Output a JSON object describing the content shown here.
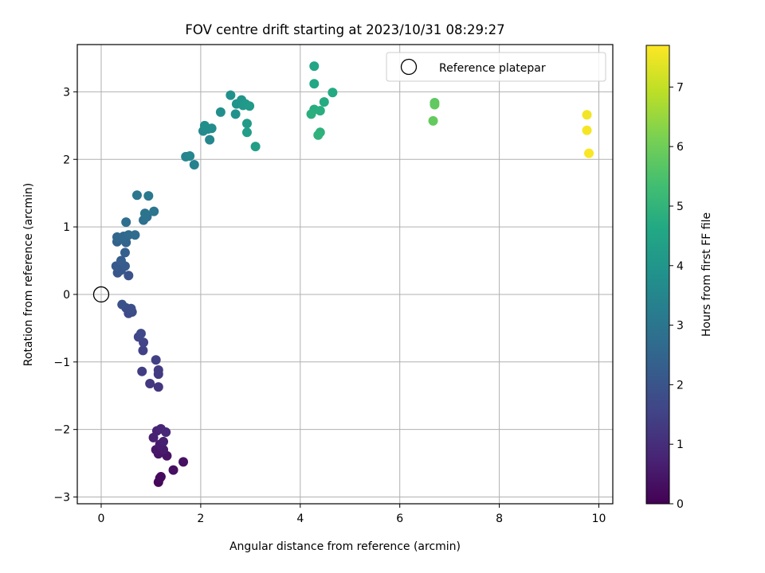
{
  "chart_data": {
    "type": "scatter",
    "title": "FOV centre drift starting at 2023/10/31 08:29:27",
    "xlabel": "Angular distance from reference (arcmin)",
    "ylabel": "Rotation from reference (arcmin)",
    "xlim": [
      -0.48,
      10.28
    ],
    "ylim": [
      -3.1,
      3.7
    ],
    "xticks": [
      0,
      2,
      4,
      6,
      8,
      10
    ],
    "yticks": [
      -3,
      -2,
      -1,
      0,
      1,
      2,
      3
    ],
    "grid": true,
    "legend": {
      "position": "top-right",
      "entries": [
        "Reference platepar"
      ]
    },
    "reference": {
      "x": 0,
      "y": 0,
      "label": "Reference platepar"
    },
    "colorbar": {
      "label": "Hours from first FF file",
      "range": [
        0,
        7.7
      ],
      "ticks": [
        0,
        1,
        2,
        3,
        4,
        5,
        6,
        7
      ],
      "colormap": "viridis"
    },
    "points": [
      {
        "x": 1.15,
        "y": -2.78,
        "t": 0.1
      },
      {
        "x": 1.18,
        "y": -2.72,
        "t": 0.15
      },
      {
        "x": 1.2,
        "y": -2.7,
        "t": 0.2
      },
      {
        "x": 1.45,
        "y": -2.6,
        "t": 0.3
      },
      {
        "x": 1.65,
        "y": -2.48,
        "t": 0.35
      },
      {
        "x": 1.32,
        "y": -2.39,
        "t": 0.4
      },
      {
        "x": 1.15,
        "y": -2.36,
        "t": 0.45
      },
      {
        "x": 1.1,
        "y": -2.3,
        "t": 0.5
      },
      {
        "x": 1.25,
        "y": -2.3,
        "t": 0.55
      },
      {
        "x": 1.18,
        "y": -2.22,
        "t": 0.6
      },
      {
        "x": 1.25,
        "y": -2.18,
        "t": 0.65
      },
      {
        "x": 1.05,
        "y": -2.12,
        "t": 0.7
      },
      {
        "x": 1.12,
        "y": -2.02,
        "t": 0.75
      },
      {
        "x": 1.2,
        "y": -1.99,
        "t": 0.8
      },
      {
        "x": 1.3,
        "y": -2.04,
        "t": 0.85
      },
      {
        "x": 1.15,
        "y": -1.37,
        "t": 1.2
      },
      {
        "x": 0.98,
        "y": -1.32,
        "t": 1.25
      },
      {
        "x": 1.15,
        "y": -1.18,
        "t": 1.3
      },
      {
        "x": 1.15,
        "y": -1.12,
        "t": 1.35
      },
      {
        "x": 0.82,
        "y": -1.14,
        "t": 1.4
      },
      {
        "x": 1.1,
        "y": -0.97,
        "t": 1.45
      },
      {
        "x": 0.84,
        "y": -0.83,
        "t": 1.5
      },
      {
        "x": 0.85,
        "y": -0.71,
        "t": 1.55
      },
      {
        "x": 0.75,
        "y": -0.63,
        "t": 1.6
      },
      {
        "x": 0.8,
        "y": -0.58,
        "t": 1.65
      },
      {
        "x": 0.55,
        "y": -0.28,
        "t": 1.7
      },
      {
        "x": 0.62,
        "y": -0.26,
        "t": 1.75
      },
      {
        "x": 0.5,
        "y": -0.2,
        "t": 1.8
      },
      {
        "x": 0.6,
        "y": -0.21,
        "t": 1.85
      },
      {
        "x": 0.42,
        "y": -0.15,
        "t": 1.9
      },
      {
        "x": 0.55,
        "y": 0.28,
        "t": 2.0
      },
      {
        "x": 0.33,
        "y": 0.32,
        "t": 2.05
      },
      {
        "x": 0.4,
        "y": 0.36,
        "t": 2.1
      },
      {
        "x": 0.3,
        "y": 0.42,
        "t": 2.15
      },
      {
        "x": 0.48,
        "y": 0.42,
        "t": 2.2
      },
      {
        "x": 0.4,
        "y": 0.5,
        "t": 2.25
      },
      {
        "x": 0.48,
        "y": 0.62,
        "t": 2.3
      },
      {
        "x": 0.32,
        "y": 0.78,
        "t": 2.4
      },
      {
        "x": 0.5,
        "y": 0.77,
        "t": 2.45
      },
      {
        "x": 0.38,
        "y": 0.83,
        "t": 2.5
      },
      {
        "x": 0.32,
        "y": 0.85,
        "t": 2.55
      },
      {
        "x": 0.45,
        "y": 0.86,
        "t": 2.6
      },
      {
        "x": 0.55,
        "y": 0.88,
        "t": 2.65
      },
      {
        "x": 0.68,
        "y": 0.88,
        "t": 2.7
      },
      {
        "x": 0.5,
        "y": 1.07,
        "t": 2.8
      },
      {
        "x": 0.85,
        "y": 1.1,
        "t": 2.85
      },
      {
        "x": 0.92,
        "y": 1.15,
        "t": 2.9
      },
      {
        "x": 0.88,
        "y": 1.2,
        "t": 2.95
      },
      {
        "x": 1.06,
        "y": 1.23,
        "t": 3.0
      },
      {
        "x": 0.72,
        "y": 1.47,
        "t": 3.05
      },
      {
        "x": 0.95,
        "y": 1.46,
        "t": 3.1
      },
      {
        "x": 1.87,
        "y": 1.92,
        "t": 3.4
      },
      {
        "x": 1.7,
        "y": 2.04,
        "t": 3.45
      },
      {
        "x": 1.78,
        "y": 2.05,
        "t": 3.5
      },
      {
        "x": 2.18,
        "y": 2.29,
        "t": 3.55
      },
      {
        "x": 2.05,
        "y": 2.42,
        "t": 3.6
      },
      {
        "x": 2.15,
        "y": 2.45,
        "t": 3.65
      },
      {
        "x": 2.22,
        "y": 2.46,
        "t": 3.7
      },
      {
        "x": 2.08,
        "y": 2.5,
        "t": 3.75
      },
      {
        "x": 2.4,
        "y": 2.7,
        "t": 3.8
      },
      {
        "x": 2.6,
        "y": 2.95,
        "t": 3.85
      },
      {
        "x": 2.7,
        "y": 2.67,
        "t": 3.9
      },
      {
        "x": 2.72,
        "y": 2.82,
        "t": 3.95
      },
      {
        "x": 2.82,
        "y": 2.88,
        "t": 4.0
      },
      {
        "x": 2.85,
        "y": 2.8,
        "t": 4.05
      },
      {
        "x": 2.9,
        "y": 2.82,
        "t": 4.1
      },
      {
        "x": 2.98,
        "y": 2.79,
        "t": 4.15
      },
      {
        "x": 2.93,
        "y": 2.53,
        "t": 4.2
      },
      {
        "x": 2.93,
        "y": 2.4,
        "t": 4.25
      },
      {
        "x": 3.1,
        "y": 2.19,
        "t": 4.3
      },
      {
        "x": 4.28,
        "y": 3.38,
        "t": 4.55
      },
      {
        "x": 4.28,
        "y": 3.12,
        "t": 4.6
      },
      {
        "x": 4.65,
        "y": 2.99,
        "t": 4.65
      },
      {
        "x": 4.48,
        "y": 2.85,
        "t": 4.7
      },
      {
        "x": 4.28,
        "y": 2.74,
        "t": 4.75
      },
      {
        "x": 4.4,
        "y": 2.72,
        "t": 4.8
      },
      {
        "x": 4.22,
        "y": 2.67,
        "t": 4.85
      },
      {
        "x": 4.4,
        "y": 2.4,
        "t": 4.9
      },
      {
        "x": 4.36,
        "y": 2.36,
        "t": 4.95
      },
      {
        "x": 6.7,
        "y": 2.84,
        "t": 5.75
      },
      {
        "x": 6.7,
        "y": 2.81,
        "t": 5.8
      },
      {
        "x": 6.67,
        "y": 2.57,
        "t": 5.85
      },
      {
        "x": 9.76,
        "y": 2.66,
        "t": 7.55
      },
      {
        "x": 9.76,
        "y": 2.43,
        "t": 7.6
      },
      {
        "x": 9.8,
        "y": 2.09,
        "t": 7.65
      }
    ]
  }
}
